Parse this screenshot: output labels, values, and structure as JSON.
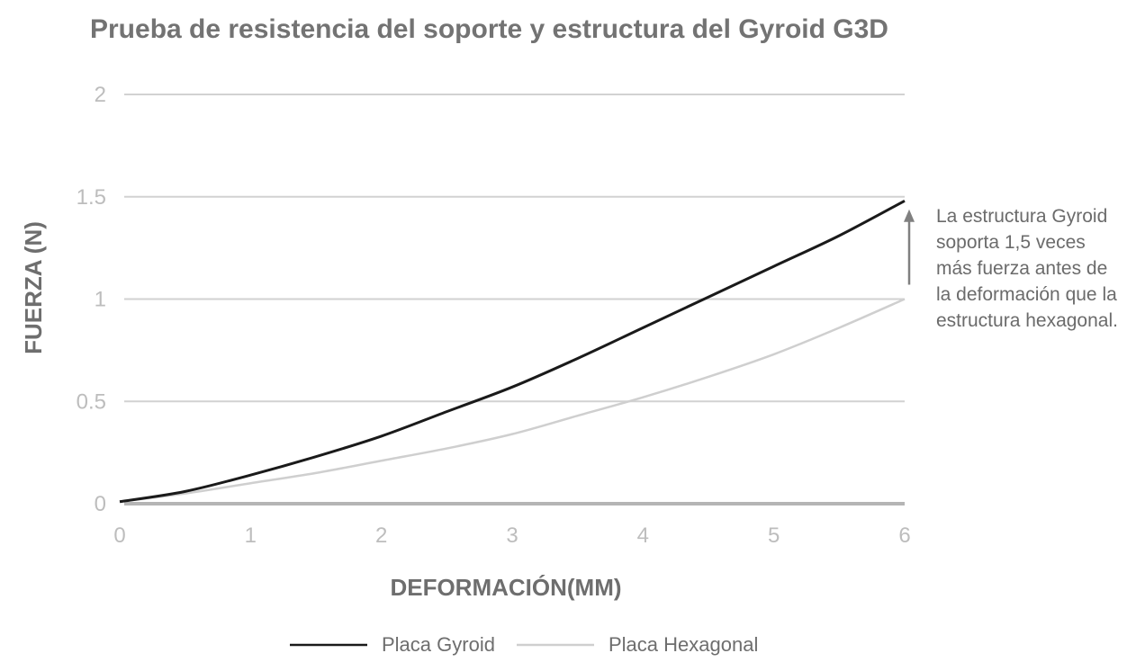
{
  "chart_data": {
    "type": "line",
    "title": "Prueba de resistencia del soporte y estructura del Gyroid G3D",
    "xlabel": "DEFORMACIÓN(MM)",
    "ylabel": "FUERZA (N)",
    "xlim": [
      0,
      6
    ],
    "ylim": [
      0,
      2
    ],
    "x_ticks": [
      "0",
      "1",
      "2",
      "3",
      "4",
      "5",
      "6"
    ],
    "y_ticks": [
      "0",
      "0.5",
      "1",
      "1.5",
      "2"
    ],
    "grid": "horizontal",
    "legend_position": "bottom",
    "series": [
      {
        "name": "Placa Gyroid",
        "color": "#1a1a1a",
        "x": [
          0,
          0.5,
          1,
          1.5,
          2,
          2.5,
          3,
          3.5,
          4,
          4.5,
          5,
          5.5,
          6
        ],
        "y": [
          0.01,
          0.06,
          0.14,
          0.23,
          0.33,
          0.45,
          0.57,
          0.71,
          0.86,
          1.01,
          1.16,
          1.31,
          1.48
        ]
      },
      {
        "name": "Placa Hexagonal",
        "color": "#cfcfcf",
        "x": [
          0,
          0.5,
          1,
          1.5,
          2,
          2.5,
          3,
          3.5,
          4,
          4.5,
          5,
          5.5,
          6
        ],
        "y": [
          0.01,
          0.05,
          0.1,
          0.15,
          0.21,
          0.27,
          0.34,
          0.43,
          0.52,
          0.62,
          0.73,
          0.86,
          1.0
        ]
      }
    ],
    "annotation": "La estructura Gyroid soporta 1,5 veces más fuerza antes de la deformación que la estructura hexagonal.",
    "annotation_arrow": {
      "from_y": 1.0,
      "to_y": 1.5
    }
  }
}
